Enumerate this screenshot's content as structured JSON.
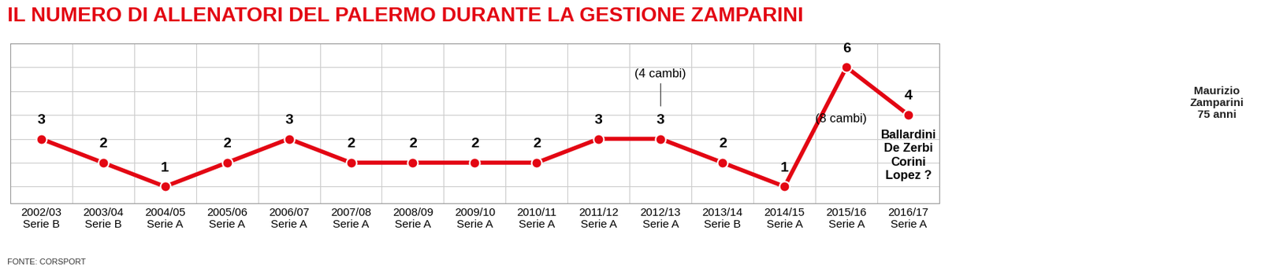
{
  "chart_data": {
    "type": "line",
    "title": "IL NUMERO DI ALLENATORI DEL PALERMO DURANTE LA GESTIONE ZAMPARINI",
    "categories": [
      "2002/03\nSerie B",
      "2003/04\nSerie B",
      "2004/05\nSerie A",
      "2005/06\nSerie A",
      "2006/07\nSerie A",
      "2007/08\nSerie A",
      "2008/09\nSerie A",
      "2009/10\nSerie A",
      "2010/11\nSerie A",
      "2011/12\nSerie A",
      "2012/13\nSerie A",
      "2013/14\nSerie B",
      "2014/15\nSerie A",
      "2015/16\nSerie A",
      "2016/17\nSerie A"
    ],
    "values": [
      3,
      2,
      1,
      2,
      3,
      2,
      2,
      2,
      2,
      3,
      3,
      2,
      1,
      6,
      4
    ],
    "color": "#e30613",
    "marker": "o",
    "ylim": [
      0.3,
      7
    ],
    "yticks": [
      1,
      2,
      3,
      4,
      5,
      6,
      7
    ],
    "grid": true,
    "data_labels": true,
    "tick_labels": "x",
    "annotations": [
      {
        "category": "2012/13\nSerie A",
        "text": "(4 cambi)"
      },
      {
        "category": "2015/16\nSerie A",
        "text": "(8 cambi)"
      },
      {
        "category": "2016/17\nSerie A",
        "text": "Ballardini\nDe Zerbi\nCorini\nLopez ?"
      }
    ],
    "source": "FONTE: CORSPORT",
    "caption": "Maurizio\nZamparini\n75 anni"
  }
}
